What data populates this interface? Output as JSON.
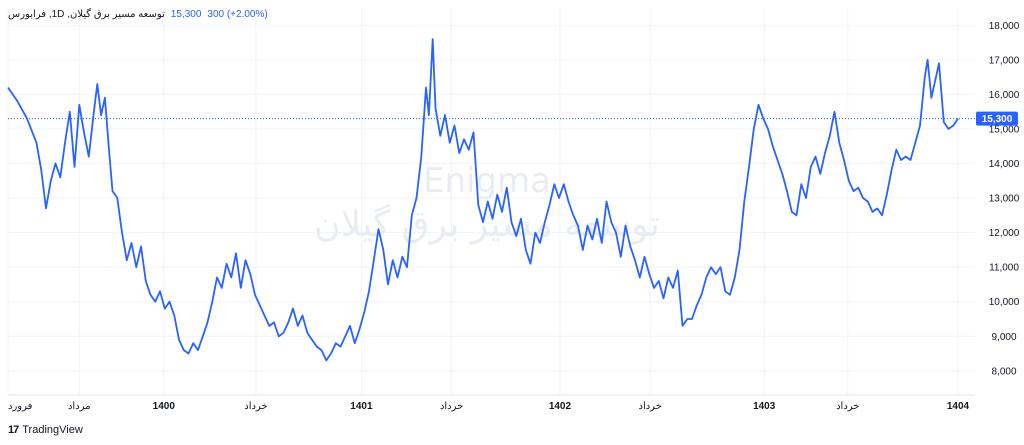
{
  "legend": {
    "symbol": "توسعه مسیر برق گیلان, 1D, فرابورس",
    "close": "15,300",
    "change": "300 (+2.00%)"
  },
  "price_tag": "15,300",
  "watermark": {
    "line1": "Enigma",
    "line2": "توسعه مسیر برق گیلان"
  },
  "branding": {
    "logo": "17",
    "text": "TradingView"
  },
  "colors": {
    "line": "#2962ff",
    "grid": "#f0f3fa",
    "tag_bg": "#2962ff"
  },
  "chart_data": {
    "type": "line",
    "ylim": [
      7300,
      18500
    ],
    "y_ticks": [
      "18,000",
      "17,000",
      "16,000",
      "15,000",
      "14,000",
      "13,000",
      "12,000",
      "11,000",
      "10,000",
      "9,000",
      "8,000"
    ],
    "y_tick_values": [
      18000,
      17000,
      16000,
      15000,
      14000,
      13000,
      12000,
      11000,
      10000,
      9000,
      8000
    ],
    "x_ticks": [
      {
        "label": "فرورد",
        "x": 0.0,
        "bold": false
      },
      {
        "label": "مرداد",
        "x": 0.075,
        "bold": false
      },
      {
        "label": "1400",
        "x": 0.164,
        "bold": true
      },
      {
        "label": "خرداد",
        "x": 0.261,
        "bold": false
      },
      {
        "label": "1401",
        "x": 0.372,
        "bold": true
      },
      {
        "label": "خرداد",
        "x": 0.467,
        "bold": false
      },
      {
        "label": "1402",
        "x": 0.581,
        "bold": true
      },
      {
        "label": "خرداد",
        "x": 0.676,
        "bold": false
      },
      {
        "label": "1403",
        "x": 0.796,
        "bold": true
      },
      {
        "label": "خرداد",
        "x": 0.884,
        "bold": false
      },
      {
        "label": "1404",
        "x": 1.0,
        "bold": true
      }
    ],
    "last_value": 15300,
    "series": [
      {
        "points": [
          [
            0.0,
            16200
          ],
          [
            0.01,
            15800
          ],
          [
            0.02,
            15300
          ],
          [
            0.03,
            14600
          ],
          [
            0.035,
            13800
          ],
          [
            0.04,
            12700
          ],
          [
            0.045,
            13500
          ],
          [
            0.05,
            14000
          ],
          [
            0.055,
            13600
          ],
          [
            0.06,
            14600
          ],
          [
            0.065,
            15500
          ],
          [
            0.07,
            13900
          ],
          [
            0.075,
            15700
          ],
          [
            0.08,
            14900
          ],
          [
            0.085,
            14200
          ],
          [
            0.09,
            15400
          ],
          [
            0.094,
            16300
          ],
          [
            0.098,
            15400
          ],
          [
            0.102,
            15900
          ],
          [
            0.106,
            14500
          ],
          [
            0.11,
            13200
          ],
          [
            0.115,
            13000
          ],
          [
            0.12,
            12000
          ],
          [
            0.125,
            11200
          ],
          [
            0.13,
            11700
          ],
          [
            0.135,
            11000
          ],
          [
            0.14,
            11600
          ],
          [
            0.145,
            10600
          ],
          [
            0.15,
            10200
          ],
          [
            0.155,
            10000
          ],
          [
            0.16,
            10300
          ],
          [
            0.165,
            9800
          ],
          [
            0.17,
            10000
          ],
          [
            0.175,
            9600
          ],
          [
            0.18,
            8900
          ],
          [
            0.185,
            8600
          ],
          [
            0.19,
            8500
          ],
          [
            0.195,
            8800
          ],
          [
            0.2,
            8600
          ],
          [
            0.205,
            9000
          ],
          [
            0.21,
            9400
          ],
          [
            0.215,
            10000
          ],
          [
            0.22,
            10700
          ],
          [
            0.225,
            10400
          ],
          [
            0.23,
            11100
          ],
          [
            0.235,
            10700
          ],
          [
            0.24,
            11400
          ],
          [
            0.245,
            10400
          ],
          [
            0.25,
            11200
          ],
          [
            0.255,
            10800
          ],
          [
            0.26,
            10200
          ],
          [
            0.265,
            9900
          ],
          [
            0.27,
            9600
          ],
          [
            0.275,
            9300
          ],
          [
            0.28,
            9400
          ],
          [
            0.285,
            9000
          ],
          [
            0.29,
            9100
          ],
          [
            0.295,
            9400
          ],
          [
            0.3,
            9800
          ],
          [
            0.305,
            9300
          ],
          [
            0.31,
            9600
          ],
          [
            0.315,
            9100
          ],
          [
            0.32,
            8900
          ],
          [
            0.325,
            8700
          ],
          [
            0.33,
            8600
          ],
          [
            0.335,
            8300
          ],
          [
            0.34,
            8500
          ],
          [
            0.345,
            8800
          ],
          [
            0.35,
            8700
          ],
          [
            0.355,
            9000
          ],
          [
            0.36,
            9300
          ],
          [
            0.365,
            8800
          ],
          [
            0.37,
            9200
          ],
          [
            0.375,
            9700
          ],
          [
            0.38,
            10300
          ],
          [
            0.385,
            11200
          ],
          [
            0.39,
            12100
          ],
          [
            0.395,
            11500
          ],
          [
            0.4,
            10500
          ],
          [
            0.405,
            11200
          ],
          [
            0.41,
            10700
          ],
          [
            0.415,
            11300
          ],
          [
            0.42,
            11000
          ],
          [
            0.425,
            12500
          ],
          [
            0.43,
            13000
          ],
          [
            0.435,
            14200
          ],
          [
            0.44,
            16200
          ],
          [
            0.443,
            15400
          ],
          [
            0.447,
            17600
          ],
          [
            0.45,
            15600
          ],
          [
            0.455,
            14800
          ],
          [
            0.46,
            15400
          ],
          [
            0.465,
            14600
          ],
          [
            0.47,
            15100
          ],
          [
            0.475,
            14300
          ],
          [
            0.48,
            14700
          ],
          [
            0.485,
            14400
          ],
          [
            0.49,
            14900
          ],
          [
            0.495,
            12800
          ],
          [
            0.5,
            12300
          ],
          [
            0.505,
            12900
          ],
          [
            0.51,
            12400
          ],
          [
            0.515,
            13100
          ],
          [
            0.52,
            12600
          ],
          [
            0.525,
            13300
          ],
          [
            0.53,
            12300
          ],
          [
            0.535,
            11900
          ],
          [
            0.54,
            12400
          ],
          [
            0.545,
            11500
          ],
          [
            0.55,
            11100
          ],
          [
            0.555,
            12000
          ],
          [
            0.56,
            11700
          ],
          [
            0.565,
            12300
          ],
          [
            0.57,
            12800
          ],
          [
            0.575,
            13400
          ],
          [
            0.58,
            13000
          ],
          [
            0.585,
            13400
          ],
          [
            0.59,
            12900
          ],
          [
            0.595,
            12500
          ],
          [
            0.6,
            12200
          ],
          [
            0.605,
            11500
          ],
          [
            0.61,
            12200
          ],
          [
            0.615,
            11800
          ],
          [
            0.62,
            12400
          ],
          [
            0.625,
            11700
          ],
          [
            0.63,
            12900
          ],
          [
            0.635,
            12300
          ],
          [
            0.64,
            12000
          ],
          [
            0.645,
            11300
          ],
          [
            0.65,
            12200
          ],
          [
            0.655,
            11600
          ],
          [
            0.66,
            11200
          ],
          [
            0.665,
            10700
          ],
          [
            0.67,
            11300
          ],
          [
            0.675,
            10800
          ],
          [
            0.68,
            10400
          ],
          [
            0.685,
            10600
          ],
          [
            0.69,
            10100
          ],
          [
            0.695,
            10700
          ],
          [
            0.7,
            10400
          ],
          [
            0.705,
            10900
          ],
          [
            0.71,
            9300
          ],
          [
            0.715,
            9500
          ],
          [
            0.72,
            9500
          ],
          [
            0.725,
            9900
          ],
          [
            0.73,
            10200
          ],
          [
            0.735,
            10700
          ],
          [
            0.74,
            11000
          ],
          [
            0.745,
            10800
          ],
          [
            0.75,
            11000
          ],
          [
            0.755,
            10300
          ],
          [
            0.76,
            10200
          ],
          [
            0.765,
            10700
          ],
          [
            0.77,
            11500
          ],
          [
            0.775,
            12900
          ],
          [
            0.78,
            13900
          ],
          [
            0.785,
            15000
          ],
          [
            0.79,
            15700
          ],
          [
            0.795,
            15300
          ],
          [
            0.8,
            15000
          ],
          [
            0.805,
            14500
          ],
          [
            0.81,
            14100
          ],
          [
            0.815,
            13700
          ],
          [
            0.82,
            13200
          ],
          [
            0.825,
            12600
          ],
          [
            0.83,
            12500
          ],
          [
            0.835,
            13400
          ],
          [
            0.84,
            13000
          ],
          [
            0.845,
            13900
          ],
          [
            0.85,
            14200
          ],
          [
            0.855,
            13700
          ],
          [
            0.86,
            14300
          ],
          [
            0.865,
            14800
          ],
          [
            0.87,
            15500
          ],
          [
            0.875,
            14600
          ],
          [
            0.88,
            14100
          ],
          [
            0.885,
            13500
          ],
          [
            0.89,
            13200
          ],
          [
            0.895,
            13300
          ],
          [
            0.9,
            13000
          ],
          [
            0.905,
            12900
          ],
          [
            0.91,
            12600
          ],
          [
            0.915,
            12700
          ],
          [
            0.92,
            12500
          ],
          [
            0.925,
            13100
          ],
          [
            0.93,
            13800
          ],
          [
            0.935,
            14400
          ],
          [
            0.94,
            14100
          ],
          [
            0.945,
            14200
          ],
          [
            0.95,
            14100
          ],
          [
            0.955,
            14600
          ],
          [
            0.96,
            15100
          ],
          [
            0.965,
            16500
          ],
          [
            0.968,
            17000
          ],
          [
            0.972,
            15900
          ],
          [
            0.976,
            16400
          ],
          [
            0.98,
            16900
          ],
          [
            0.985,
            15200
          ],
          [
            0.99,
            15000
          ],
          [
            0.995,
            15100
          ],
          [
            1.0,
            15300
          ]
        ]
      }
    ]
  }
}
